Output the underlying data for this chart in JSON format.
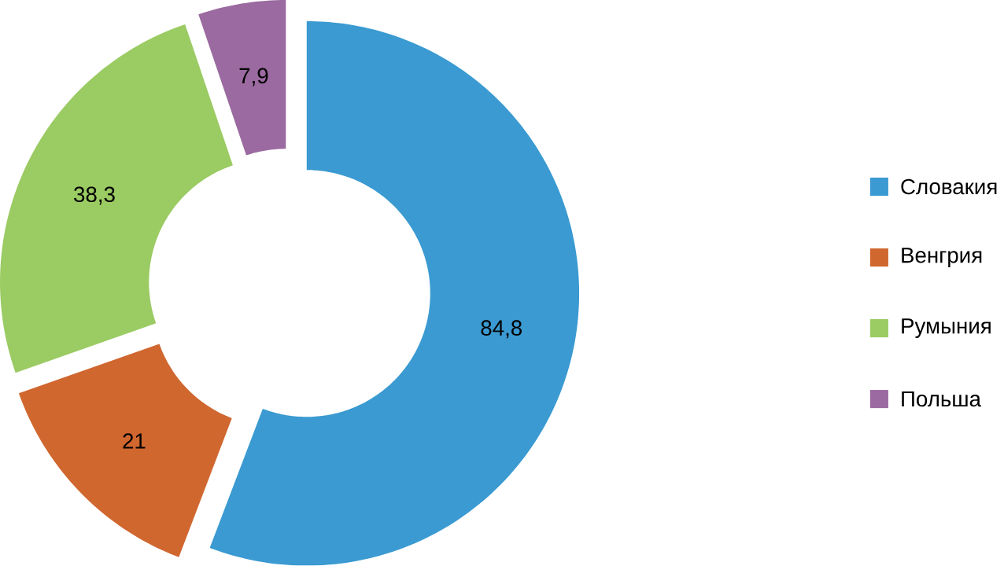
{
  "chart_data": {
    "type": "donut",
    "categories": [
      "Словакия",
      "Венгрия",
      "Румыния",
      "Польша"
    ],
    "values": [
      84.8,
      21,
      38.3,
      7.9
    ],
    "value_labels": [
      "84,8",
      "21",
      "38,3",
      "7,9"
    ],
    "colors": [
      "#3a9ad1",
      "#d0672f",
      "#9bcb63",
      "#9b6aa0"
    ],
    "legend": "right"
  }
}
